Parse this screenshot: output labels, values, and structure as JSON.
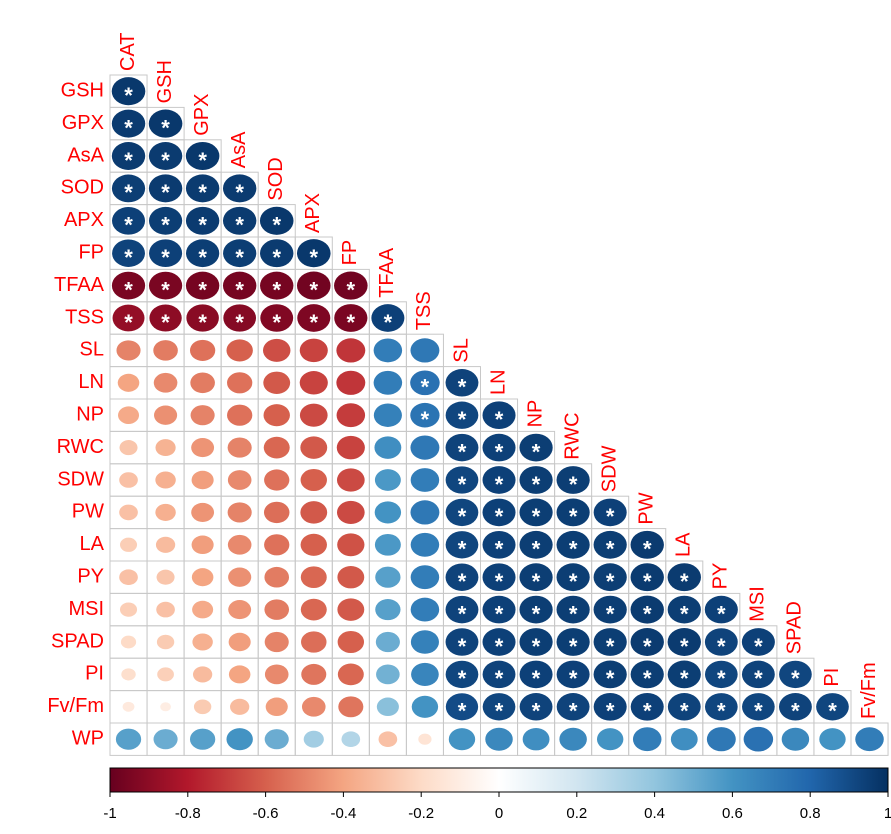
{
  "chart_data": {
    "type": "corrplot",
    "rows": [
      "GSH",
      "GPX",
      "AsA",
      "SOD",
      "APX",
      "FP",
      "TFAA",
      "TSS",
      "SL",
      "LN",
      "NP",
      "RWC",
      "SDW",
      "PW",
      "LA",
      "PY",
      "MSI",
      "SPAD",
      "PI",
      "Fv/Fm",
      "WP"
    ],
    "columns": [
      "CAT",
      "GSH",
      "GPX",
      "AsA",
      "SOD",
      "APX",
      "FP",
      "TFAA",
      "TSS",
      "SL",
      "LN",
      "NP",
      "RWC",
      "SDW",
      "PW",
      "LA",
      "PY",
      "MSI",
      "SPAD",
      "PI",
      "Fv/Fm"
    ],
    "matrix": [
      [
        0.97
      ],
      [
        0.96,
        0.97
      ],
      [
        0.96,
        0.96,
        0.97
      ],
      [
        0.95,
        0.96,
        0.96,
        0.96
      ],
      [
        0.94,
        0.95,
        0.96,
        0.96,
        0.97
      ],
      [
        0.93,
        0.94,
        0.95,
        0.95,
        0.96,
        0.97
      ],
      [
        -0.95,
        -0.95,
        -0.96,
        -0.96,
        -0.96,
        -0.97,
        -0.97
      ],
      [
        -0.88,
        -0.9,
        -0.91,
        -0.92,
        -0.93,
        -0.94,
        -0.95,
        0.94
      ],
      [
        -0.5,
        -0.52,
        -0.55,
        -0.6,
        -0.65,
        -0.68,
        -0.72,
        0.7,
        0.72
      ],
      [
        -0.4,
        -0.48,
        -0.52,
        -0.55,
        -0.62,
        -0.68,
        -0.72,
        0.7,
        0.75,
        0.93
      ],
      [
        -0.38,
        -0.46,
        -0.5,
        -0.55,
        -0.6,
        -0.66,
        -0.7,
        0.68,
        0.74,
        0.92,
        0.94
      ],
      [
        -0.28,
        -0.35,
        -0.45,
        -0.5,
        -0.58,
        -0.62,
        -0.68,
        0.62,
        0.72,
        0.93,
        0.94,
        0.95
      ],
      [
        -0.3,
        -0.36,
        -0.42,
        -0.48,
        -0.55,
        -0.6,
        -0.66,
        0.58,
        0.7,
        0.92,
        0.94,
        0.95,
        0.95
      ],
      [
        -0.3,
        -0.36,
        -0.45,
        -0.5,
        -0.56,
        -0.62,
        -0.66,
        0.6,
        0.72,
        0.92,
        0.94,
        0.95,
        0.95,
        0.94
      ],
      [
        -0.25,
        -0.32,
        -0.42,
        -0.48,
        -0.55,
        -0.6,
        -0.64,
        0.58,
        0.7,
        0.92,
        0.94,
        0.95,
        0.95,
        0.95,
        0.96
      ],
      [
        -0.3,
        -0.28,
        -0.4,
        -0.46,
        -0.52,
        -0.58,
        -0.62,
        0.55,
        0.7,
        0.93,
        0.94,
        0.95,
        0.95,
        0.95,
        0.96,
        0.96
      ],
      [
        -0.25,
        -0.3,
        -0.38,
        -0.45,
        -0.52,
        -0.58,
        -0.62,
        0.55,
        0.7,
        0.93,
        0.94,
        0.95,
        0.95,
        0.95,
        0.96,
        0.95,
        0.94
      ],
      [
        -0.2,
        -0.26,
        -0.36,
        -0.42,
        -0.5,
        -0.56,
        -0.6,
        0.5,
        0.68,
        0.93,
        0.94,
        0.95,
        0.95,
        0.95,
        0.96,
        0.96,
        0.93,
        0.94
      ],
      [
        -0.18,
        -0.24,
        -0.32,
        -0.4,
        -0.48,
        -0.54,
        -0.58,
        0.48,
        0.66,
        0.92,
        0.93,
        0.94,
        0.94,
        0.95,
        0.95,
        0.95,
        0.92,
        0.93,
        0.92
      ],
      [
        -0.12,
        -0.1,
        -0.26,
        -0.32,
        -0.42,
        -0.48,
        -0.54,
        0.42,
        0.6,
        0.9,
        0.92,
        0.93,
        0.93,
        0.94,
        0.94,
        0.93,
        0.92,
        0.92,
        0.93,
        0.92
      ],
      [
        0.55,
        0.5,
        0.55,
        0.6,
        0.5,
        0.35,
        0.3,
        -0.3,
        -0.15,
        0.6,
        0.65,
        0.62,
        0.65,
        0.6,
        0.7,
        0.62,
        0.72,
        0.75,
        0.65,
        0.6,
        0.7
      ]
    ],
    "significant": [
      [
        1
      ],
      [
        1,
        1
      ],
      [
        1,
        1,
        1
      ],
      [
        1,
        1,
        1,
        1
      ],
      [
        1,
        1,
        1,
        1,
        1
      ],
      [
        1,
        1,
        1,
        1,
        1,
        1
      ],
      [
        1,
        1,
        1,
        1,
        1,
        1,
        1
      ],
      [
        1,
        1,
        1,
        1,
        1,
        1,
        1,
        1
      ],
      [
        0,
        0,
        0,
        0,
        0,
        0,
        0,
        0,
        0
      ],
      [
        0,
        0,
        0,
        0,
        0,
        0,
        0,
        0,
        1,
        1
      ],
      [
        0,
        0,
        0,
        0,
        0,
        0,
        0,
        0,
        1,
        1,
        1
      ],
      [
        0,
        0,
        0,
        0,
        0,
        0,
        0,
        0,
        0,
        1,
        1,
        1
      ],
      [
        0,
        0,
        0,
        0,
        0,
        0,
        0,
        0,
        0,
        1,
        1,
        1,
        1
      ],
      [
        0,
        0,
        0,
        0,
        0,
        0,
        0,
        0,
        0,
        1,
        1,
        1,
        1,
        1
      ],
      [
        0,
        0,
        0,
        0,
        0,
        0,
        0,
        0,
        0,
        1,
        1,
        1,
        1,
        1,
        1
      ],
      [
        0,
        0,
        0,
        0,
        0,
        0,
        0,
        0,
        0,
        1,
        1,
        1,
        1,
        1,
        1,
        1
      ],
      [
        0,
        0,
        0,
        0,
        0,
        0,
        0,
        0,
        0,
        1,
        1,
        1,
        1,
        1,
        1,
        1,
        1
      ],
      [
        0,
        0,
        0,
        0,
        0,
        0,
        0,
        0,
        0,
        1,
        1,
        1,
        1,
        1,
        1,
        1,
        1,
        1
      ],
      [
        0,
        0,
        0,
        0,
        0,
        0,
        0,
        0,
        0,
        1,
        1,
        1,
        1,
        1,
        1,
        1,
        1,
        1,
        1
      ],
      [
        0,
        0,
        0,
        0,
        0,
        0,
        0,
        0,
        0,
        1,
        1,
        1,
        1,
        1,
        1,
        1,
        1,
        1,
        1,
        1
      ],
      [
        0,
        0,
        0,
        0,
        0,
        0,
        0,
        0,
        0,
        0,
        0,
        0,
        0,
        0,
        0,
        0,
        0,
        0,
        0,
        0,
        0
      ]
    ],
    "sig_symbol": "*",
    "colorscale": [
      "#67001F",
      "#B2182B",
      "#D6604D",
      "#F4A582",
      "#FDDBC7",
      "#FFFFFF",
      "#D1E5F0",
      "#92C5DE",
      "#4393C3",
      "#2166AC",
      "#053061"
    ],
    "colorbar_lim": [
      -1,
      1
    ],
    "colorbar_ticks": [
      -1,
      -0.8,
      -0.6,
      -0.4,
      -0.2,
      0,
      0.2,
      0.4,
      0.6,
      0.8,
      1
    ]
  }
}
